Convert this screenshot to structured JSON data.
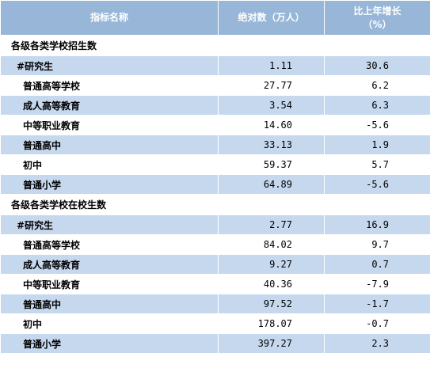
{
  "header": {
    "col_name": "指标名称",
    "col_value": "绝对数（万人）",
    "col_growth_line1": "比上年增长",
    "col_growth_line2": "（%）"
  },
  "sections": [
    {
      "title": "各级各类学校招生数",
      "rows": [
        {
          "name": "#研究生",
          "value": "1.11",
          "growth": "30.6"
        },
        {
          "name": "普通高等学校",
          "value": "27.77",
          "growth": "6.2"
        },
        {
          "name": "成人高等教育",
          "value": "3.54",
          "growth": "6.3"
        },
        {
          "name": "中等职业教育",
          "value": "14.60",
          "growth": "-5.6"
        },
        {
          "name": "普通高中",
          "value": "33.13",
          "growth": "1.9"
        },
        {
          "name": "初中",
          "value": "59.37",
          "growth": "5.7"
        },
        {
          "name": "普通小学",
          "value": "64.89",
          "growth": "-5.6"
        }
      ]
    },
    {
      "title": "各级各类学校在校生数",
      "rows": [
        {
          "name": "#研究生",
          "value": "2.77",
          "growth": "16.9"
        },
        {
          "name": "普通高等学校",
          "value": "84.02",
          "growth": "9.7"
        },
        {
          "name": "成人高等教育",
          "value": "9.27",
          "growth": "0.7"
        },
        {
          "name": "中等职业教育",
          "value": "40.36",
          "growth": "-7.9"
        },
        {
          "name": "普通高中",
          "value": "97.52",
          "growth": "-1.7"
        },
        {
          "name": "初中",
          "value": "178.07",
          "growth": "-0.7"
        },
        {
          "name": "普通小学",
          "value": "397.27",
          "growth": "2.3"
        }
      ]
    }
  ]
}
